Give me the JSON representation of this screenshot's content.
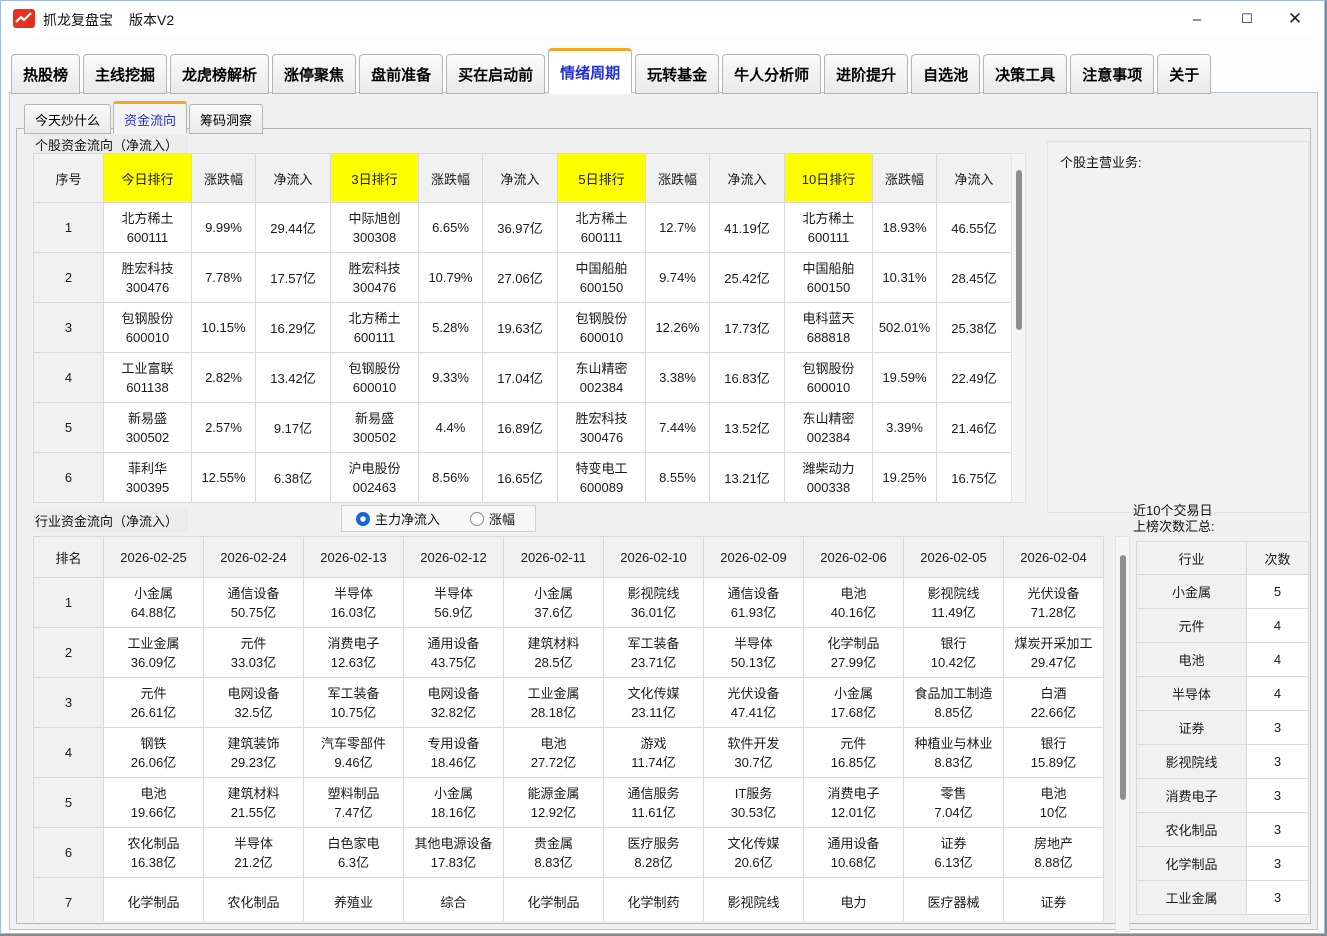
{
  "window": {
    "title": "抓龙复盘宝",
    "version": "版本V2",
    "controls": {
      "minimize": "–",
      "maximize": "☐",
      "close": "✕"
    }
  },
  "tabs": {
    "items": [
      "热股榜",
      "主线挖掘",
      "龙虎榜解析",
      "涨停聚焦",
      "盘前准备",
      "买在启动前",
      "情绪周期",
      "玩转基金",
      "牛人分析师",
      "进阶提升",
      "自选池",
      "决策工具",
      "注意事项",
      "关于"
    ],
    "active_index": 6
  },
  "subtabs": {
    "items": [
      "今天炒什么",
      "资金流向",
      "筹码洞察"
    ],
    "active_index": 1
  },
  "stock_flow": {
    "section_title": "个股资金流向（净流入）",
    "columns": [
      "序号",
      "今日排行",
      "涨跌幅",
      "净流入",
      "3日排行",
      "涨跌幅",
      "净流入",
      "5日排行",
      "涨跌幅",
      "净流入",
      "10日排行",
      "涨跌幅",
      "净流入"
    ],
    "highlight_columns": [
      1,
      4,
      7,
      10
    ],
    "rows": [
      {
        "no": "1",
        "groups": [
          [
            "北方稀土",
            "600111",
            "9.99%",
            "29.44亿"
          ],
          [
            "中际旭创",
            "300308",
            "6.65%",
            "36.97亿"
          ],
          [
            "北方稀土",
            "600111",
            "12.7%",
            "41.19亿"
          ],
          [
            "北方稀土",
            "600111",
            "18.93%",
            "46.55亿"
          ]
        ]
      },
      {
        "no": "2",
        "groups": [
          [
            "胜宏科技",
            "300476",
            "7.78%",
            "17.57亿"
          ],
          [
            "胜宏科技",
            "300476",
            "10.79%",
            "27.06亿"
          ],
          [
            "中国船舶",
            "600150",
            "9.74%",
            "25.42亿"
          ],
          [
            "中国船舶",
            "600150",
            "10.31%",
            "28.45亿"
          ]
        ]
      },
      {
        "no": "3",
        "groups": [
          [
            "包钢股份",
            "600010",
            "10.15%",
            "16.29亿"
          ],
          [
            "北方稀土",
            "600111",
            "5.28%",
            "19.63亿"
          ],
          [
            "包钢股份",
            "600010",
            "12.26%",
            "17.73亿"
          ],
          [
            "电科蓝天",
            "688818",
            "502.01%",
            "25.38亿"
          ]
        ]
      },
      {
        "no": "4",
        "groups": [
          [
            "工业富联",
            "601138",
            "2.82%",
            "13.42亿"
          ],
          [
            "包钢股份",
            "600010",
            "9.33%",
            "17.04亿"
          ],
          [
            "东山精密",
            "002384",
            "3.38%",
            "16.83亿"
          ],
          [
            "包钢股份",
            "600010",
            "19.59%",
            "22.49亿"
          ]
        ]
      },
      {
        "no": "5",
        "groups": [
          [
            "新易盛",
            "300502",
            "2.57%",
            "9.17亿"
          ],
          [
            "新易盛",
            "300502",
            "4.4%",
            "16.89亿"
          ],
          [
            "胜宏科技",
            "300476",
            "7.44%",
            "13.52亿"
          ],
          [
            "东山精密",
            "002384",
            "3.39%",
            "21.46亿"
          ]
        ]
      },
      {
        "no": "6",
        "groups": [
          [
            "菲利华",
            "300395",
            "12.55%",
            "6.38亿"
          ],
          [
            "沪电股份",
            "002463",
            "8.56%",
            "16.65亿"
          ],
          [
            "特变电工",
            "600089",
            "8.55%",
            "13.21亿"
          ],
          [
            "潍柴动力",
            "000338",
            "19.25%",
            "16.75亿"
          ]
        ]
      }
    ]
  },
  "business_panel": {
    "label": "个股主营业务:"
  },
  "industry_flow": {
    "section_title": "行业资金流向（净流入）",
    "radios": [
      {
        "label": "主力净流入",
        "selected": true
      },
      {
        "label": "涨幅",
        "selected": false
      }
    ],
    "columns": [
      "排名",
      "2026-02-25",
      "2026-02-24",
      "2026-02-13",
      "2026-02-12",
      "2026-02-11",
      "2026-02-10",
      "2026-02-09",
      "2026-02-06",
      "2026-02-05",
      "2026-02-04"
    ],
    "rows": [
      {
        "rank": "1",
        "cells": [
          [
            "小金属",
            "64.88亿"
          ],
          [
            "通信设备",
            "50.75亿"
          ],
          [
            "半导体",
            "16.03亿"
          ],
          [
            "半导体",
            "56.9亿"
          ],
          [
            "小金属",
            "37.6亿"
          ],
          [
            "影视院线",
            "36.01亿"
          ],
          [
            "通信设备",
            "61.93亿"
          ],
          [
            "电池",
            "40.16亿"
          ],
          [
            "影视院线",
            "11.49亿"
          ],
          [
            "光伏设备",
            "71.28亿"
          ]
        ]
      },
      {
        "rank": "2",
        "cells": [
          [
            "工业金属",
            "36.09亿"
          ],
          [
            "元件",
            "33.03亿"
          ],
          [
            "消费电子",
            "12.63亿"
          ],
          [
            "通用设备",
            "43.75亿"
          ],
          [
            "建筑材料",
            "28.5亿"
          ],
          [
            "军工装备",
            "23.71亿"
          ],
          [
            "半导体",
            "50.13亿"
          ],
          [
            "化学制品",
            "27.99亿"
          ],
          [
            "银行",
            "10.42亿"
          ],
          [
            "煤炭开采加工",
            "29.47亿"
          ]
        ]
      },
      {
        "rank": "3",
        "cells": [
          [
            "元件",
            "26.61亿"
          ],
          [
            "电网设备",
            "32.5亿"
          ],
          [
            "军工装备",
            "10.75亿"
          ],
          [
            "电网设备",
            "32.82亿"
          ],
          [
            "工业金属",
            "28.18亿"
          ],
          [
            "文化传媒",
            "23.11亿"
          ],
          [
            "光伏设备",
            "47.41亿"
          ],
          [
            "小金属",
            "17.68亿"
          ],
          [
            "食品加工制造",
            "8.85亿"
          ],
          [
            "白酒",
            "22.66亿"
          ]
        ]
      },
      {
        "rank": "4",
        "cells": [
          [
            "钢铁",
            "26.06亿"
          ],
          [
            "建筑装饰",
            "29.23亿"
          ],
          [
            "汽车零部件",
            "9.46亿"
          ],
          [
            "专用设备",
            "18.46亿"
          ],
          [
            "电池",
            "27.72亿"
          ],
          [
            "游戏",
            "11.74亿"
          ],
          [
            "软件开发",
            "30.7亿"
          ],
          [
            "元件",
            "16.85亿"
          ],
          [
            "种植业与林业",
            "8.83亿"
          ],
          [
            "银行",
            "15.89亿"
          ]
        ]
      },
      {
        "rank": "5",
        "cells": [
          [
            "电池",
            "19.66亿"
          ],
          [
            "建筑材料",
            "21.55亿"
          ],
          [
            "塑料制品",
            "7.47亿"
          ],
          [
            "小金属",
            "18.16亿"
          ],
          [
            "能源金属",
            "12.92亿"
          ],
          [
            "通信服务",
            "11.61亿"
          ],
          [
            "IT服务",
            "30.53亿"
          ],
          [
            "消费电子",
            "12.01亿"
          ],
          [
            "零售",
            "7.04亿"
          ],
          [
            "电池",
            "10亿"
          ]
        ]
      },
      {
        "rank": "6",
        "cells": [
          [
            "农化制品",
            "16.38亿"
          ],
          [
            "半导体",
            "21.2亿"
          ],
          [
            "白色家电",
            "6.3亿"
          ],
          [
            "其他电源设备",
            "17.83亿"
          ],
          [
            "贵金属",
            "8.83亿"
          ],
          [
            "医疗服务",
            "8.28亿"
          ],
          [
            "文化传媒",
            "20.6亿"
          ],
          [
            "通用设备",
            "10.68亿"
          ],
          [
            "证券",
            "6.13亿"
          ],
          [
            "房地产",
            "8.88亿"
          ]
        ]
      },
      {
        "rank": "7",
        "cells": [
          [
            "化学制品",
            ""
          ],
          [
            "农化制品",
            ""
          ],
          [
            "养殖业",
            ""
          ],
          [
            "综合",
            ""
          ],
          [
            "化学制品",
            ""
          ],
          [
            "化学制药",
            ""
          ],
          [
            "影视院线",
            ""
          ],
          [
            "电力",
            ""
          ],
          [
            "医疗器械",
            ""
          ],
          [
            "证券",
            ""
          ]
        ]
      }
    ]
  },
  "summary": {
    "title_line1": "近10个交易日",
    "title_line2": "上榜次数汇总:",
    "columns": [
      "行业",
      "次数"
    ],
    "rows": [
      [
        "小金属",
        "5"
      ],
      [
        "元件",
        "4"
      ],
      [
        "电池",
        "4"
      ],
      [
        "半导体",
        "4"
      ],
      [
        "证券",
        "3"
      ],
      [
        "影视院线",
        "3"
      ],
      [
        "消费电子",
        "3"
      ],
      [
        "农化制品",
        "3"
      ],
      [
        "化学制品",
        "3"
      ],
      [
        "工业金属",
        "3"
      ]
    ]
  },
  "colors": {
    "accent_orange": "#f5a623",
    "active_tab_text": "#2533d0",
    "highlight_yellow": "#ffff00",
    "radio_blue": "#1464d2",
    "app_icon_red": "#e8301c"
  }
}
